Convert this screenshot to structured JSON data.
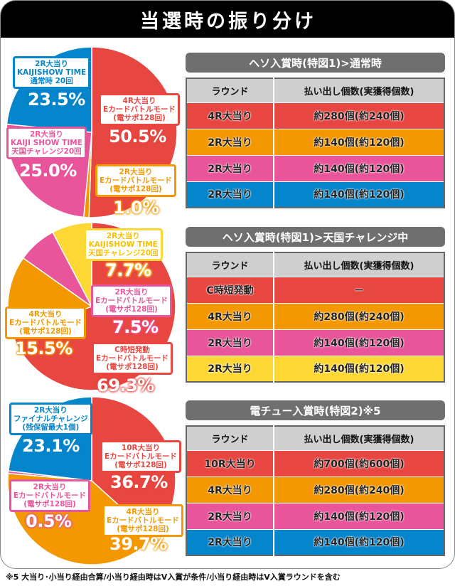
{
  "header": {
    "title": "当選時の振り分け"
  },
  "colors": {
    "red": "#e84640",
    "orange": "#f39800",
    "pink": "#e9559a",
    "blue": "#0585cb",
    "yellow": "#fdd835",
    "header_gray": "#6f6f6f"
  },
  "tables": [
    {
      "title": "ヘソ入賞時(特図1)>通常時",
      "headers": [
        "ラウンド",
        "払い出し個数(実獲得個数)"
      ],
      "rows": [
        {
          "round": "4R大当り",
          "payout": "約280個(約240個)",
          "color": "#e84640"
        },
        {
          "round": "2R大当り",
          "payout": "約140個(約120個)",
          "color": "#f39800"
        },
        {
          "round": "2R大当り",
          "payout": "約140個(約120個)",
          "color": "#e9559a"
        },
        {
          "round": "2R大当り",
          "payout": "約140個(約120個)",
          "color": "#0585cb"
        }
      ]
    },
    {
      "title": "ヘソ入賞時(特図1)>天国チャレンジ中",
      "headers": [
        "ラウンド",
        "払い出し個数(実獲得個数)"
      ],
      "rows": [
        {
          "round": "C時短発動",
          "payout": "－",
          "color": "#e84640"
        },
        {
          "round": "4R大当り",
          "payout": "約280個(約240個)",
          "color": "#f39800"
        },
        {
          "round": "2R大当り",
          "payout": "約140個(約120個)",
          "color": "#e9559a"
        },
        {
          "round": "2R大当り",
          "payout": "約140個(約120個)",
          "color": "#fdd835"
        }
      ]
    },
    {
      "title": "電チュー入賞時(特図2)※5",
      "headers": [
        "ラウンド",
        "払い出し個数(実獲得個数)"
      ],
      "rows": [
        {
          "round": "10R大当り",
          "payout": "約700個(約600個)",
          "color": "#e84640"
        },
        {
          "round": "4R大当り",
          "payout": "約280個(約240個)",
          "color": "#f39800"
        },
        {
          "round": "2R大当り",
          "payout": "約140個(約120個)",
          "color": "#e9559a"
        },
        {
          "round": "2R大当り",
          "payout": "約140個(約120個)",
          "color": "#0585cb"
        }
      ]
    }
  ],
  "pies": [
    {
      "labels": [
        {
          "lines": [
            "2R大当り",
            "KAIJISHOW TIME",
            "通常時 20回"
          ],
          "pct": "23.5%"
        },
        {
          "lines": [
            "4R大当り",
            "Eカードバトルモード",
            "(電サポ128回)"
          ],
          "pct": "50.5%"
        },
        {
          "lines": [
            "2R大当り",
            "KAIJI SHOW TIME",
            "天国チャレンジ20回"
          ],
          "pct": "25.0%"
        },
        {
          "lines": [
            "2R大当り",
            "Eカードバトルモード",
            "(電サポ128回)"
          ],
          "pct": "1.0%"
        }
      ]
    },
    {
      "labels": [
        {
          "lines": [
            "2R大当り",
            "KAIJISHOW TIME",
            "天国チャレンジ20回"
          ],
          "pct": "7.7%"
        },
        {
          "lines": [
            "2R大当り",
            "Eカードバトルモード",
            "(電サポ128回)"
          ],
          "pct": "7.5%"
        },
        {
          "lines": [
            "4R大当り",
            "Eカードバトルモード",
            "(電サポ128回)"
          ],
          "pct": "15.5%"
        },
        {
          "lines": [
            "C時短発動",
            "Eカードバトルモード",
            "(電サポ128回)"
          ],
          "pct": "69.3%"
        }
      ]
    },
    {
      "labels": [
        {
          "lines": [
            "2R大当り",
            "ファイナルチャレンジ",
            "(残保留最大1個)"
          ],
          "pct": "23.1%"
        },
        {
          "lines": [
            "10R大当り",
            "Eカードバトルモード",
            "(電サポ128回)"
          ],
          "pct": "36.7%"
        },
        {
          "lines": [
            "2R大当り",
            "Eカードバトルモード",
            "(電サポ128回)"
          ],
          "pct": "0.5%"
        },
        {
          "lines": [
            "4R大当り",
            "Eカードバトルモード",
            "(電サポ128回)"
          ],
          "pct": "39.7%"
        }
      ]
    }
  ],
  "footnote": "※5 大当り･小当り経由合算/小当り経由時はV入賞が条件/小当り経由時はV入賞ラウンドを含む",
  "chart_data": [
    {
      "type": "pie",
      "title": "ヘソ入賞時(特図1)>通常時",
      "categories": [
        "4R大当り Eカードバトルモード(電サポ128回)",
        "2R大当り Eカードバトルモード(電サポ128回)",
        "2R大当り KAIJI SHOW TIME 天国チャレンジ20回",
        "2R大当り KAIJISHOW TIME 通常時 20回"
      ],
      "values": [
        50.5,
        1.0,
        25.0,
        23.5
      ],
      "colors": [
        "#e84640",
        "#f39800",
        "#e9559a",
        "#0585cb"
      ]
    },
    {
      "type": "pie",
      "title": "ヘソ入賞時(特図1)>天国チャレンジ中",
      "categories": [
        "C時短発動 Eカードバトルモード(電サポ128回)",
        "4R大当り Eカードバトルモード(電サポ128回)",
        "2R大当り Eカードバトルモード(電サポ128回)",
        "2R大当り KAIJISHOW TIME 天国チャレンジ20回"
      ],
      "values": [
        69.3,
        15.5,
        7.5,
        7.7
      ],
      "colors": [
        "#e84640",
        "#f39800",
        "#e9559a",
        "#fdd835"
      ]
    },
    {
      "type": "pie",
      "title": "電チュー入賞時(特図2)※5",
      "categories": [
        "10R大当り Eカードバトルモード(電サポ128回)",
        "4R大当り Eカードバトルモード(電サポ128回)",
        "2R大当り Eカードバトルモード(電サポ128回)",
        "2R大当り ファイナルチャレンジ(残保留最大1個)"
      ],
      "values": [
        36.7,
        39.7,
        0.5,
        23.1
      ],
      "colors": [
        "#e84640",
        "#f39800",
        "#e9559a",
        "#0585cb"
      ]
    }
  ]
}
